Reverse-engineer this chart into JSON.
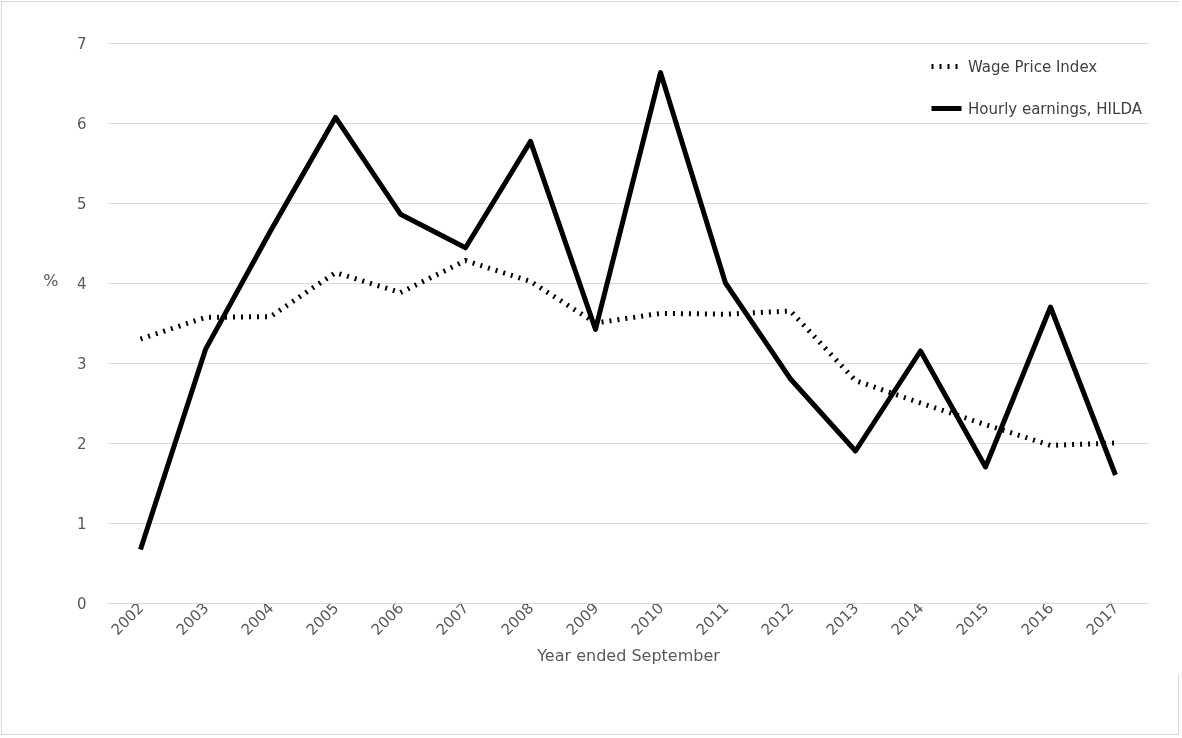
{
  "chart_data": {
    "type": "line",
    "xlabel": "Year ended September",
    "ylabel": "%",
    "categories": [
      "2002",
      "2003",
      "2004",
      "2005",
      "2006",
      "2007",
      "2008",
      "2009",
      "2010",
      "2011",
      "2012",
      "2013",
      "2014",
      "2015",
      "2016",
      "2017"
    ],
    "series": [
      {
        "name": "Wage Price Index",
        "color": "#000000",
        "line_style": "dotted",
        "values": [
          3.3,
          3.57,
          3.58,
          4.13,
          3.88,
          4.28,
          4.02,
          3.5,
          3.62,
          3.61,
          3.65,
          2.78,
          2.5,
          2.23,
          1.97,
          2.0
        ]
      },
      {
        "name": "Hourly earnings, HILDA",
        "color": "#000000",
        "line_style": "solid",
        "values": [
          0.67,
          3.17,
          4.65,
          6.07,
          4.86,
          4.44,
          5.77,
          3.42,
          6.63,
          4.0,
          2.8,
          1.9,
          3.15,
          1.7,
          3.7,
          1.6
        ]
      }
    ],
    "ylim": [
      0,
      7
    ],
    "yticks": [
      0,
      1,
      2,
      3,
      4,
      5,
      6,
      7
    ],
    "grid": "y",
    "legend": "top right",
    "marker": "none"
  }
}
